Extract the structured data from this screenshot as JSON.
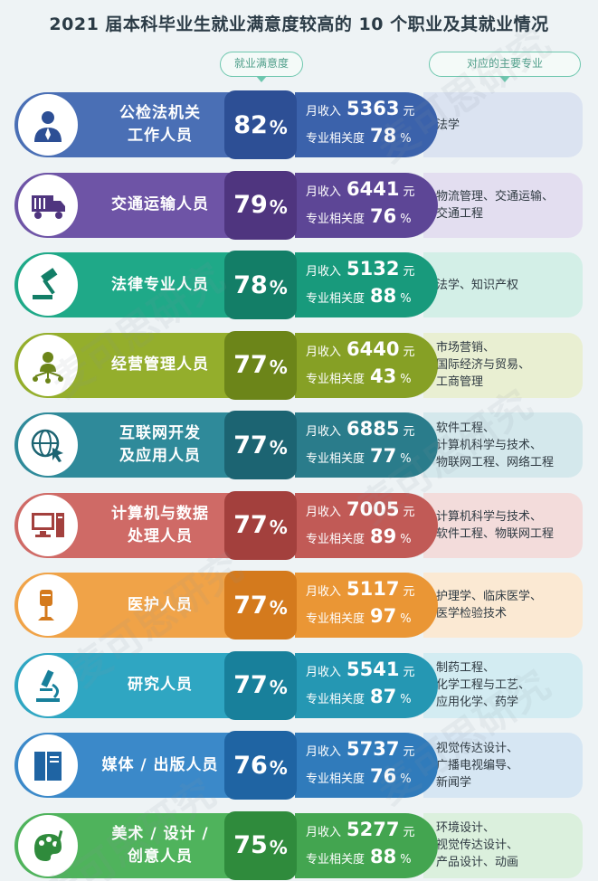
{
  "title": "2021 届本科毕业生就业满意度较高的 10 个职业及其就业情况",
  "headers": {
    "satisfaction": "就业满意度",
    "majors": "对应的主要专业"
  },
  "labels": {
    "income": "月收入",
    "relevance": "专业相关度",
    "currency": "元",
    "percent": "%"
  },
  "watermark": "麦可思研究",
  "rows": [
    {
      "job": "公检法机关\n工作人员",
      "satisfaction": "82",
      "income": "5363",
      "relevance": "78",
      "majors": "法学",
      "icon": "officer-icon",
      "colors": {
        "pill": "#4a6fb5",
        "sat": "#2d4f95",
        "detail": "#3b62ab",
        "majors": "#dbe3f1"
      }
    },
    {
      "job": "交通运输人员",
      "satisfaction": "79",
      "income": "6441",
      "relevance": "76",
      "majors": "物流管理、交通运输、\n交通工程",
      "icon": "truck-icon",
      "colors": {
        "pill": "#6e54a6",
        "sat": "#4f357f",
        "detail": "#5d4696",
        "majors": "#e3def0"
      }
    },
    {
      "job": "法律专业人员",
      "satisfaction": "78",
      "income": "5132",
      "relevance": "88",
      "majors": "法学、知识产权",
      "icon": "gavel-icon",
      "colors": {
        "pill": "#1fa988",
        "sat": "#137e67",
        "detail": "#189a7c",
        "majors": "#d3efe7"
      }
    },
    {
      "job": "经营管理人员",
      "satisfaction": "77",
      "income": "6440",
      "relevance": "43",
      "majors": "市场营销、\n国际经济与贸易、\n工商管理",
      "icon": "manager-icon",
      "colors": {
        "pill": "#94ae2c",
        "sat": "#6c8519",
        "detail": "#86a025",
        "majors": "#e9efd2"
      }
    },
    {
      "job": "互联网开发\n及应用人员",
      "satisfaction": "77",
      "income": "6885",
      "relevance": "77",
      "majors": "软件工程、\n计算机科学与技术、\n物联网工程、网络工程",
      "icon": "globe-cursor-icon",
      "colors": {
        "pill": "#2f8a9a",
        "sat": "#1c6472",
        "detail": "#2a7c8b",
        "majors": "#d4e8ec"
      }
    },
    {
      "job": "计算机与数据\n处理人员",
      "satisfaction": "77",
      "income": "7005",
      "relevance": "89",
      "majors": "计算机科学与技术、\n软件工程、物联网工程",
      "icon": "computer-icon",
      "colors": {
        "pill": "#cf6a66",
        "sat": "#a3403d",
        "detail": "#c15a56",
        "majors": "#f3dcdb"
      }
    },
    {
      "job": "医护人员",
      "satisfaction": "77",
      "income": "5117",
      "relevance": "97",
      "majors": "护理学、临床医学、\n医学检验技术",
      "icon": "iv-drip-icon",
      "colors": {
        "pill": "#f0a348",
        "sat": "#d47a1d",
        "detail": "#ea9635",
        "majors": "#fbe9d3"
      }
    },
    {
      "job": "研究人员",
      "satisfaction": "77",
      "income": "5541",
      "relevance": "87",
      "majors": "制药工程、\n化学工程与工艺、\n应用化学、药学",
      "icon": "microscope-icon",
      "colors": {
        "pill": "#2fa6c2",
        "sat": "#18809b",
        "detail": "#2597b3",
        "majors": "#d3ecf2"
      }
    },
    {
      "job": "媒体 / 出版人员",
      "satisfaction": "76",
      "income": "5737",
      "relevance": "76",
      "majors": "视觉传达设计、\n广播电视编导、\n新闻学",
      "icon": "book-icon",
      "colors": {
        "pill": "#3b89c9",
        "sat": "#1f64a3",
        "detail": "#307bbb",
        "majors": "#d6e6f3"
      }
    },
    {
      "job": "美术 / 设计 /\n创意人员",
      "satisfaction": "75",
      "income": "5277",
      "relevance": "88",
      "majors": "环境设计、\n视觉传达设计、\n产品设计、动画",
      "icon": "palette-icon",
      "colors": {
        "pill": "#4fb35c",
        "sat": "#2f8b3c",
        "detail": "#43a550",
        "majors": "#dbf0dd"
      }
    }
  ]
}
